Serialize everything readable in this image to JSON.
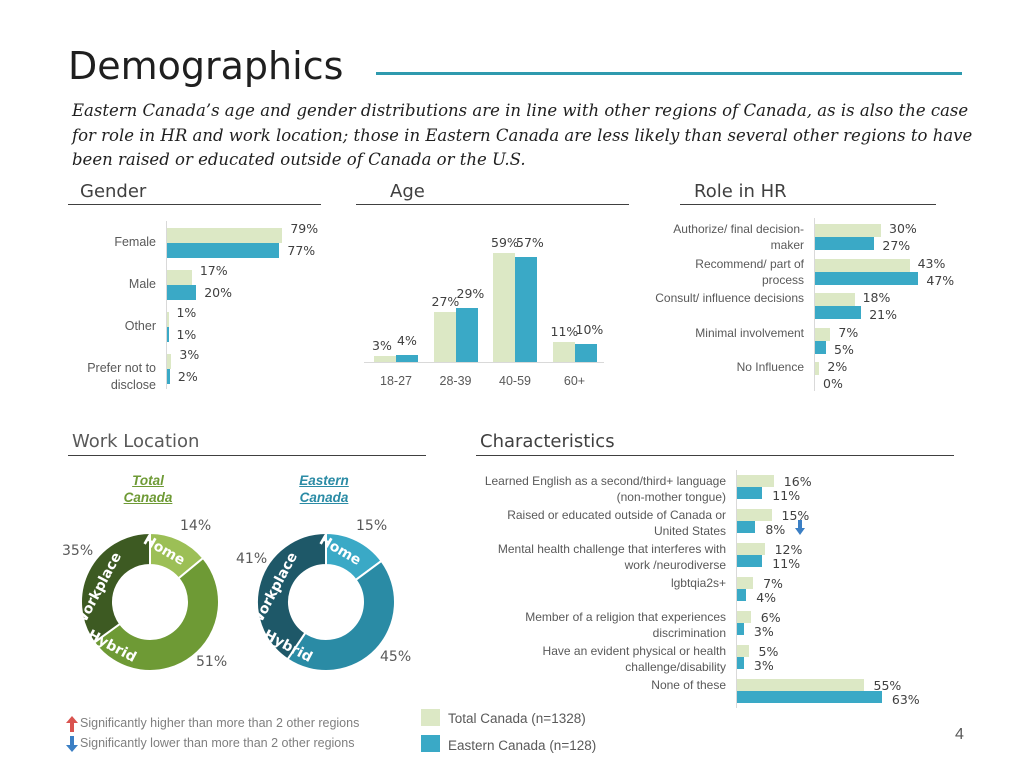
{
  "header": {
    "title": "Demographics",
    "subtitle": "Eastern Canada’s age and gender distributions are in line with other regions of Canada, as is also the case for role in HR and work location; those in Eastern Canada are less likely than several other regions to have been raised or educated outside of Canada or the U.S."
  },
  "legend": {
    "total": "Total Canada (n=1328)",
    "eastern": "Eastern Canada (n=128)",
    "higher": "Significantly higher than more than 2 other regions",
    "lower": "Significantly lower than more than 2 other regions"
  },
  "colors": {
    "total": "#DCE8C5",
    "eastern": "#3AA9C6",
    "rule": "#2E9AAE"
  },
  "page_number": "4",
  "chart_data": [
    {
      "type": "bar",
      "title": "Gender",
      "orientation": "horizontal",
      "categories": [
        "Female",
        "Male",
        "Other",
        "Prefer not to disclose"
      ],
      "series": [
        {
          "name": "Total Canada (n=1328)",
          "values": [
            79,
            17,
            1,
            3
          ],
          "labels": [
            "79%",
            "17%",
            "1%",
            "3%"
          ]
        },
        {
          "name": "Eastern Canada (n=128)",
          "values": [
            77,
            20,
            1,
            2
          ],
          "labels": [
            "77%",
            "20%",
            "1%",
            "2%"
          ]
        }
      ]
    },
    {
      "type": "bar",
      "title": "Age",
      "orientation": "vertical",
      "categories": [
        "18-27",
        "28-39",
        "40-59",
        "60+"
      ],
      "series": [
        {
          "name": "Total Canada (n=1328)",
          "values": [
            3,
            27,
            59,
            11
          ],
          "labels": [
            "3%",
            "27%",
            "59%",
            "11%"
          ]
        },
        {
          "name": "Eastern Canada (n=128)",
          "values": [
            4,
            29,
            57,
            10
          ],
          "labels": [
            "4%",
            "29%",
            "57%",
            "10%"
          ]
        }
      ]
    },
    {
      "type": "bar",
      "title": "Role in HR",
      "orientation": "horizontal",
      "categories": [
        "Authorize/ final decision-maker",
        "Recommend/ part of process",
        "Consult/ influence decisions",
        "Minimal involvement",
        "No Influence"
      ],
      "series": [
        {
          "name": "Total Canada (n=1328)",
          "values": [
            30,
            43,
            18,
            7,
            2
          ],
          "labels": [
            "30%",
            "43%",
            "18%",
            "7%",
            "2%"
          ]
        },
        {
          "name": "Eastern Canada (n=128)",
          "values": [
            27,
            47,
            21,
            5,
            0
          ],
          "labels": [
            "27%",
            "47%",
            "21%",
            "5%",
            "0%"
          ]
        }
      ]
    },
    {
      "type": "pie",
      "title": "Work Location",
      "charts": [
        {
          "caption": "Total Canada",
          "slices": [
            {
              "name": "Home",
              "value": 14,
              "label": "14%",
              "color": "#9CBF56"
            },
            {
              "name": "Hybrid",
              "value": 51,
              "label": "51%",
              "color": "#6E9A35"
            },
            {
              "name": "Workplace",
              "value": 35,
              "label": "35%",
              "color": "#3D5A22"
            }
          ]
        },
        {
          "caption": "Eastern Canada",
          "slices": [
            {
              "name": "Home",
              "value": 15,
              "label": "15%",
              "color": "#3AA9C6"
            },
            {
              "name": "Hybrid",
              "value": 45,
              "label": "45%",
              "color": "#2A8BA5"
            },
            {
              "name": "Workplace",
              "value": 41,
              "label": "41%",
              "color": "#1E5868"
            }
          ]
        }
      ]
    },
    {
      "type": "bar",
      "title": "Characteristics",
      "orientation": "horizontal",
      "categories": [
        "Learned English as a second/third+ language (non-mother tongue)",
        "Raised or educated outside of Canada or United States",
        "Mental health challenge that interferes with work /neurodiverse",
        "lgbtqia2s+",
        "Member of a religion that experiences discrimination",
        "Have an evident physical or health challenge/disability",
        "None of these"
      ],
      "series": [
        {
          "name": "Total Canada (n=1328)",
          "values": [
            16,
            15,
            12,
            7,
            6,
            5,
            55
          ],
          "labels": [
            "16%",
            "15%",
            "12%",
            "7%",
            "6%",
            "5%",
            "55%"
          ]
        },
        {
          "name": "Eastern Canada (n=128)",
          "values": [
            11,
            8,
            11,
            4,
            3,
            3,
            63
          ],
          "labels": [
            "11%",
            "8%",
            "11%",
            "4%",
            "3%",
            "3%",
            "63%"
          ]
        }
      ],
      "significance": [
        {
          "category": "Raised or educated outside of Canada or United States",
          "series": "Eastern Canada (n=128)",
          "direction": "lower"
        }
      ]
    }
  ]
}
